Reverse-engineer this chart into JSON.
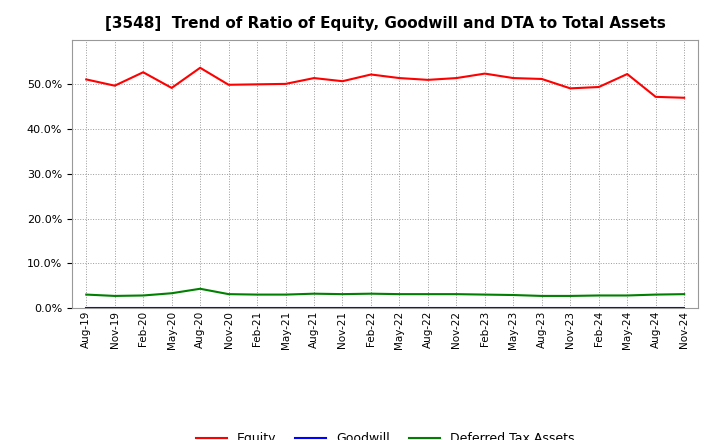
{
  "title": "[3548]  Trend of Ratio of Equity, Goodwill and DTA to Total Assets",
  "labels": [
    "Aug-19",
    "Nov-19",
    "Feb-20",
    "May-20",
    "Aug-20",
    "Nov-20",
    "Feb-21",
    "May-21",
    "Aug-21",
    "Nov-21",
    "Feb-22",
    "May-22",
    "Aug-22",
    "Nov-22",
    "Feb-23",
    "May-23",
    "Aug-23",
    "Nov-23",
    "Feb-24",
    "May-24",
    "Aug-24",
    "Nov-24"
  ],
  "equity": [
    0.511,
    0.497,
    0.527,
    0.492,
    0.537,
    0.499,
    0.5,
    0.501,
    0.514,
    0.507,
    0.522,
    0.514,
    0.51,
    0.514,
    0.524,
    0.514,
    0.512,
    0.491,
    0.494,
    0.523,
    0.472,
    0.47
  ],
  "goodwill": [
    0.0,
    0.0,
    0.0,
    0.0,
    0.0,
    0.0,
    0.0,
    0.0,
    0.0,
    0.0,
    0.0,
    0.0,
    0.0,
    0.0,
    0.0,
    0.0,
    0.0,
    0.0,
    0.0,
    0.0,
    0.0,
    0.0
  ],
  "dta": [
    0.03,
    0.027,
    0.028,
    0.033,
    0.043,
    0.031,
    0.03,
    0.03,
    0.032,
    0.031,
    0.032,
    0.031,
    0.031,
    0.031,
    0.03,
    0.029,
    0.027,
    0.027,
    0.028,
    0.028,
    0.03,
    0.031
  ],
  "equity_color": "#FF0000",
  "goodwill_color": "#0000FF",
  "dta_color": "#008000",
  "ylim": [
    0.0,
    0.6
  ],
  "yticks": [
    0.0,
    0.1,
    0.2,
    0.3,
    0.4,
    0.5
  ],
  "background_color": "#FFFFFF",
  "grid_color": "#AAAAAA",
  "legend_labels": [
    "Equity",
    "Goodwill",
    "Deferred Tax Assets"
  ]
}
